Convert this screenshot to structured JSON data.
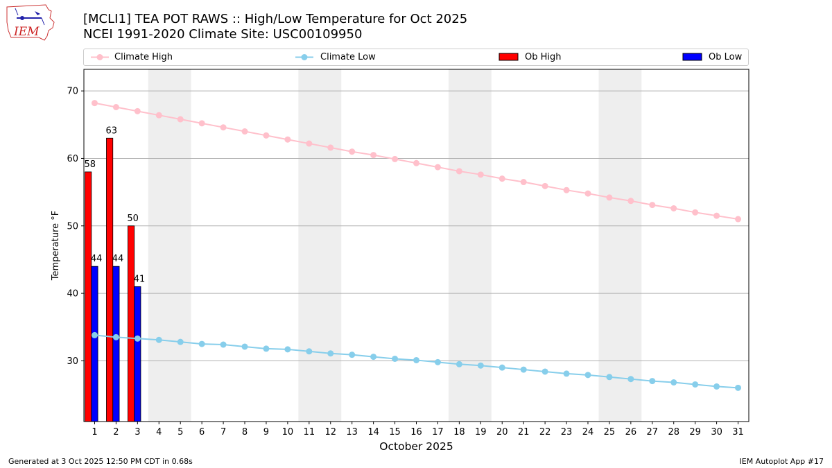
{
  "header": {
    "title": "[MCLI1] TEA POT RAWS :: High/Low Temperature for Oct 2025",
    "subtitle": "NCEI 1991-2020 Climate Site: USC00109950",
    "logo_text": "IEM"
  },
  "footer": {
    "generated": "Generated at 3 Oct 2025 12:50 PM CDT in 0.68s",
    "app": "IEM Autoplot App #17"
  },
  "colors": {
    "climate_high": "#ffc0cb",
    "climate_low": "#87ceeb",
    "ob_high": "#ff0000",
    "ob_low": "#0000ff",
    "weekend_band": "#eeeeee",
    "grid": "#b0b0b0"
  },
  "chart_data": {
    "type": "bar",
    "xlabel": "October 2025",
    "ylabel": "Temperature °F",
    "xlim": [
      0.5,
      31.5
    ],
    "ylim": [
      21,
      73.2
    ],
    "yticks": [
      30,
      40,
      50,
      60,
      70
    ],
    "grid": "horizontal",
    "legend_placement": "top",
    "weekend_shading": [
      [
        4,
        5
      ],
      [
        11,
        12
      ],
      [
        18,
        19
      ],
      [
        25,
        26
      ]
    ],
    "x": [
      1,
      2,
      3,
      4,
      5,
      6,
      7,
      8,
      9,
      10,
      11,
      12,
      13,
      14,
      15,
      16,
      17,
      18,
      19,
      20,
      21,
      22,
      23,
      24,
      25,
      26,
      27,
      28,
      29,
      30,
      31
    ],
    "series": [
      {
        "name": "Climate High",
        "kind": "line",
        "x": [
          1,
          2,
          3,
          4,
          5,
          6,
          7,
          8,
          9,
          10,
          11,
          12,
          13,
          14,
          15,
          16,
          17,
          18,
          19,
          20,
          21,
          22,
          23,
          24,
          25,
          26,
          27,
          28,
          29,
          30,
          31
        ],
        "values": [
          68.2,
          67.6,
          67.0,
          66.4,
          65.8,
          65.2,
          64.6,
          64.0,
          63.4,
          62.8,
          62.2,
          61.6,
          61.0,
          60.5,
          59.9,
          59.3,
          58.7,
          58.1,
          57.6,
          57.0,
          56.5,
          55.9,
          55.3,
          54.8,
          54.2,
          53.7,
          53.1,
          52.6,
          52.0,
          51.5,
          51.0
        ]
      },
      {
        "name": "Climate Low",
        "kind": "line",
        "x": [
          1,
          2,
          3,
          4,
          5,
          6,
          7,
          8,
          9,
          10,
          11,
          12,
          13,
          14,
          15,
          16,
          17,
          18,
          19,
          20,
          21,
          22,
          23,
          24,
          25,
          26,
          27,
          28,
          29,
          30,
          31
        ],
        "values": [
          33.8,
          33.5,
          33.3,
          33.1,
          32.8,
          32.5,
          32.4,
          32.1,
          31.8,
          31.7,
          31.4,
          31.1,
          30.9,
          30.6,
          30.3,
          30.1,
          29.8,
          29.5,
          29.3,
          29.0,
          28.7,
          28.4,
          28.1,
          27.9,
          27.6,
          27.3,
          27.0,
          26.8,
          26.5,
          26.2,
          26.0
        ]
      },
      {
        "name": "Ob High",
        "kind": "bar",
        "x": [
          1,
          2,
          3
        ],
        "values": [
          58,
          63,
          50
        ],
        "labels": [
          "58",
          "63",
          "50"
        ]
      },
      {
        "name": "Ob Low",
        "kind": "bar",
        "x": [
          1,
          2,
          3
        ],
        "values": [
          44,
          44,
          41
        ],
        "labels": [
          "44",
          "44",
          "41"
        ]
      }
    ]
  }
}
